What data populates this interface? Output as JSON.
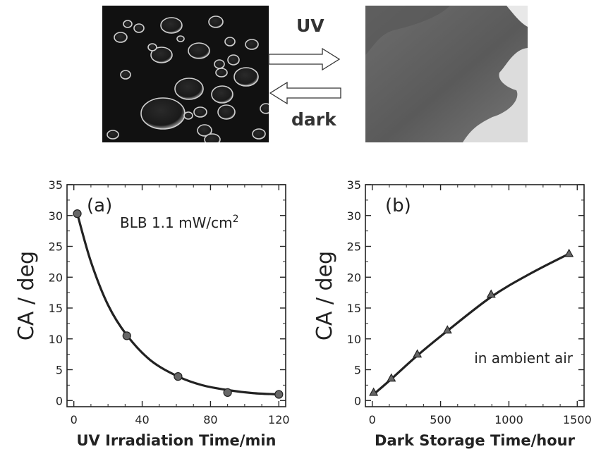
{
  "top": {
    "uv_label": "UV",
    "dark_label": "dark"
  },
  "chart_data": [
    {
      "type": "line",
      "panel_label": "(a)",
      "annotation": "BLB 1.1 mW/cm",
      "annotation_superscript": "2",
      "xlabel": "UV Irradiation Time/min",
      "ylabel": "CA / deg",
      "xlim": [
        -4,
        124
      ],
      "ylim": [
        -1,
        35
      ],
      "xticks": [
        0,
        40,
        80,
        120
      ],
      "yticks": [
        0,
        5,
        10,
        15,
        20,
        25,
        30,
        35
      ],
      "points": [
        {
          "x": 2,
          "y": 30.3
        },
        {
          "x": 31,
          "y": 10.5
        },
        {
          "x": 61,
          "y": 3.9
        },
        {
          "x": 90,
          "y": 1.3
        },
        {
          "x": 120,
          "y": 1.0
        }
      ],
      "fit_curve": [
        {
          "x": 2,
          "y": 30.3
        },
        {
          "x": 10,
          "y": 22.5
        },
        {
          "x": 20,
          "y": 15.5
        },
        {
          "x": 31,
          "y": 10.6
        },
        {
          "x": 45,
          "y": 6.5
        },
        {
          "x": 61,
          "y": 3.9
        },
        {
          "x": 75,
          "y": 2.5
        },
        {
          "x": 90,
          "y": 1.7
        },
        {
          "x": 105,
          "y": 1.2
        },
        {
          "x": 120,
          "y": 1.0
        }
      ],
      "marker": "circle"
    },
    {
      "type": "line",
      "panel_label": "(b)",
      "annotation": "in ambient air",
      "xlabel": "Dark Storage Time/hour",
      "ylabel": "CA / deg",
      "xlim": [
        -50,
        1550
      ],
      "ylim": [
        -1,
        35
      ],
      "xticks": [
        0,
        500,
        1000,
        1500
      ],
      "yticks": [
        0,
        5,
        10,
        15,
        20,
        25,
        30,
        35
      ],
      "points": [
        {
          "x": 10,
          "y": 1.3
        },
        {
          "x": 140,
          "y": 3.6
        },
        {
          "x": 330,
          "y": 7.5
        },
        {
          "x": 550,
          "y": 11.4
        },
        {
          "x": 870,
          "y": 17.2
        },
        {
          "x": 1440,
          "y": 23.8
        }
      ],
      "fit_curve": [
        {
          "x": 10,
          "y": 1.0
        },
        {
          "x": 140,
          "y": 3.5
        },
        {
          "x": 330,
          "y": 7.3
        },
        {
          "x": 550,
          "y": 11.3
        },
        {
          "x": 870,
          "y": 16.8
        },
        {
          "x": 1150,
          "y": 20.5
        },
        {
          "x": 1440,
          "y": 23.8
        }
      ],
      "marker": "triangle"
    }
  ]
}
